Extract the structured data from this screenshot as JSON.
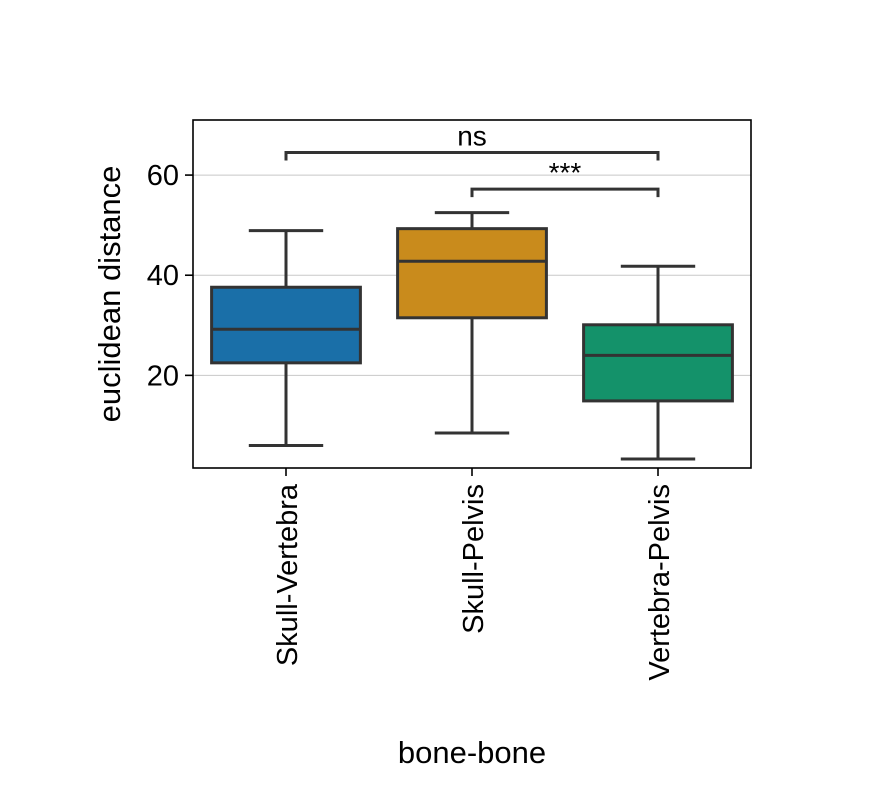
{
  "chart_data": {
    "type": "box",
    "xlabel": "bone-bone",
    "ylabel": "euclidean distance",
    "ylim": [
      1.5,
      71
    ],
    "yticks": [
      20,
      40,
      60
    ],
    "grid": "y",
    "categories": [
      "Skull-Vertebra",
      "Skull-Pelvis",
      "Vertebra-Pelvis"
    ],
    "boxes": [
      {
        "category": "Skull-Vertebra",
        "whisker_low": 6,
        "q1": 22.5,
        "median": 29.2,
        "q3": 37.6,
        "whisker_high": 48.9,
        "color": "#1a6fa8"
      },
      {
        "category": "Skull-Pelvis",
        "whisker_low": 8.5,
        "q1": 31.5,
        "median": 42.8,
        "q3": 49.3,
        "whisker_high": 52.5,
        "color": "#c98b1c"
      },
      {
        "category": "Vertebra-Pelvis",
        "whisker_low": 3.3,
        "q1": 14.9,
        "median": 24,
        "q3": 30.1,
        "whisker_high": 41.8,
        "color": "#14926a"
      }
    ],
    "annotations": [
      {
        "from": "Skull-Vertebra",
        "to": "Vertebra-Pelvis",
        "label": "ns",
        "y": 64.5
      },
      {
        "from": "Skull-Pelvis",
        "to": "Vertebra-Pelvis",
        "label": "***",
        "y": 57.2
      }
    ]
  }
}
